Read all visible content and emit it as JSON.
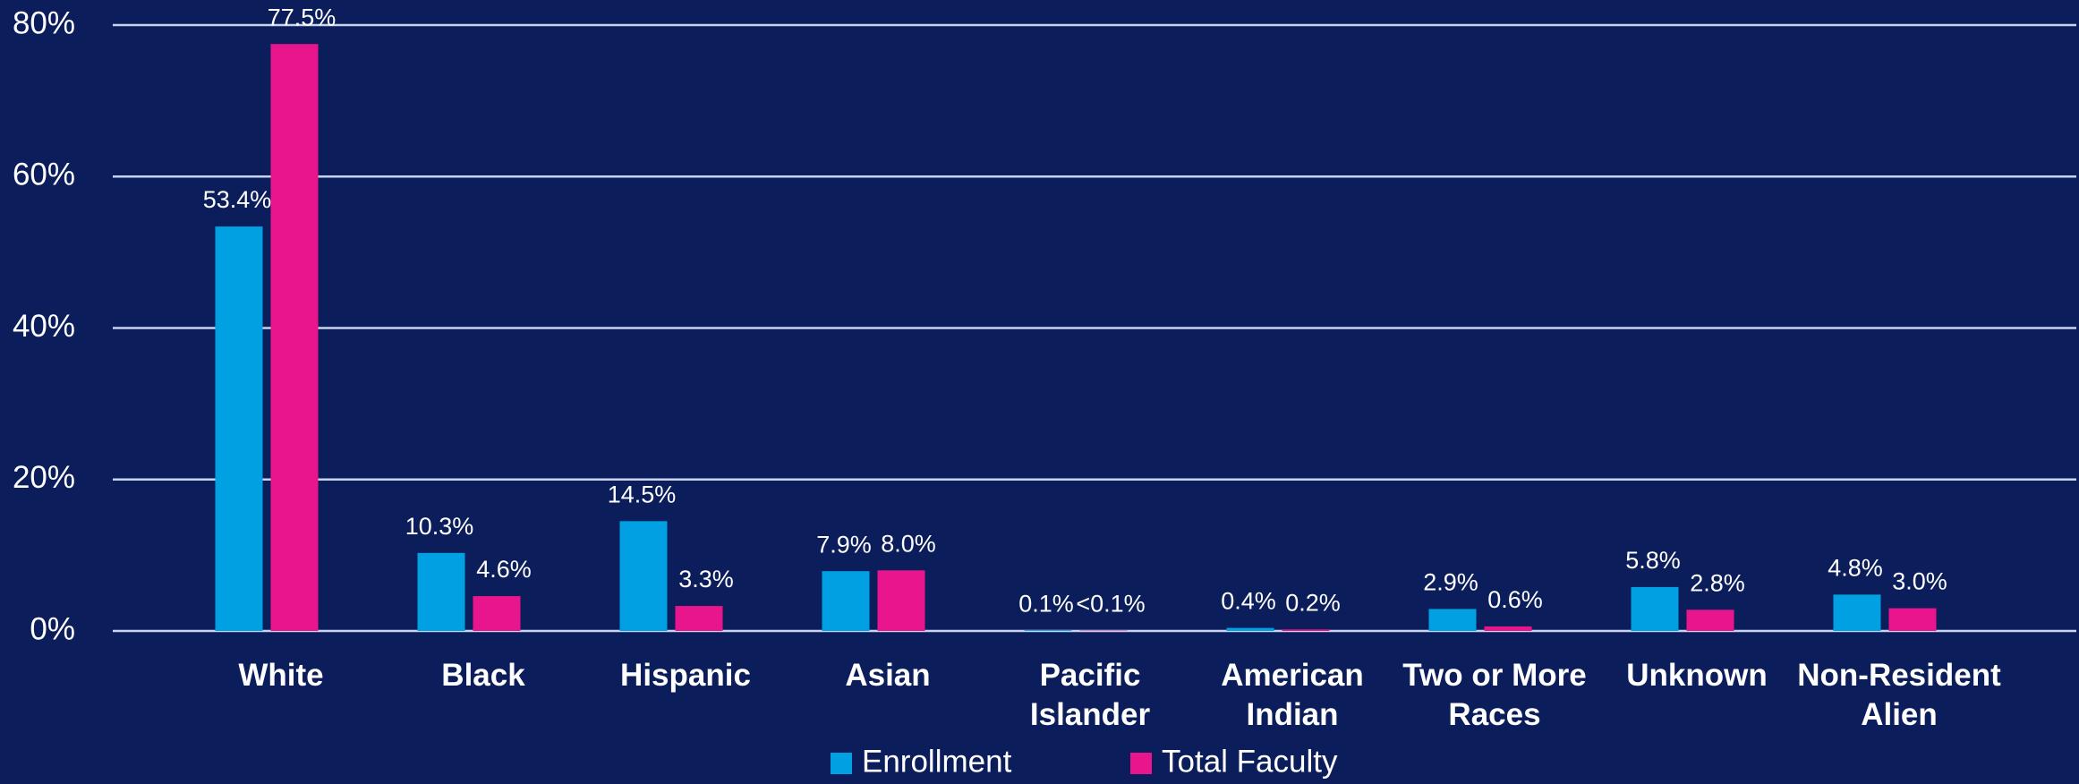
{
  "chart_data": {
    "type": "bar",
    "categories": [
      "White",
      "Black",
      "Hispanic",
      "Asian",
      "Pacific Islander",
      "American Indian",
      "Two or More Races",
      "Unknown",
      "Non-Resident Alien"
    ],
    "series": [
      {
        "name": "Enrollment",
        "color": "#00a0e3",
        "values": [
          53.4,
          10.3,
          14.5,
          7.9,
          0.1,
          0.4,
          2.9,
          5.8,
          4.8
        ],
        "value_labels": [
          "53.4%",
          "10.3%",
          "14.5%",
          "7.9%",
          "0.1%",
          "0.4%",
          "2.9%",
          "5.8%",
          "4.8%"
        ]
      },
      {
        "name": "Total Faculty",
        "color": "#e8158d",
        "values": [
          77.5,
          4.6,
          3.3,
          8.0,
          0.05,
          0.2,
          0.6,
          2.8,
          3.0
        ],
        "value_labels": [
          "77.5%",
          "4.6%",
          "3.3%",
          "8.0%",
          "<0.1%",
          "0.2%",
          "0.6%",
          "2.8%",
          "3.0%"
        ]
      }
    ],
    "ylim": [
      0,
      80
    ],
    "yticks": [
      {
        "value": 0,
        "label": "0%"
      },
      {
        "value": 20,
        "label": "20%"
      },
      {
        "value": 40,
        "label": "40%"
      },
      {
        "value": 60,
        "label": "60%"
      },
      {
        "value": 80,
        "label": "80%"
      }
    ],
    "grid": true,
    "legend": "bottom"
  }
}
